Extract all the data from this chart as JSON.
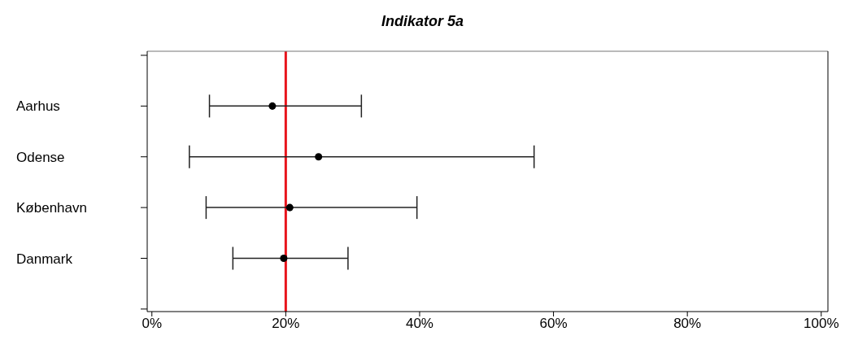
{
  "chart_data": {
    "type": "scatter",
    "title": "Indikator 5a",
    "orientation": "horizontal",
    "categories": [
      null,
      "Aarhus",
      "Odense",
      "København",
      "Danmark",
      null
    ],
    "values": [
      null,
      18.0,
      24.9,
      20.6,
      19.7,
      null
    ],
    "errors": [
      null,
      [
        8.6,
        31.3
      ],
      [
        5.6,
        57.1
      ],
      [
        8.1,
        39.6
      ],
      [
        12.1,
        29.3
      ],
      null
    ],
    "color": "#000000",
    "marker": "circle",
    "xlim": [
      -0.7,
      101
    ],
    "xticks": [
      {
        "value": 0,
        "label": "0%"
      },
      {
        "value": 20,
        "label": "20%"
      },
      {
        "value": 40,
        "label": "40%"
      },
      {
        "value": 60,
        "label": "60%"
      },
      {
        "value": 80,
        "label": "80%"
      },
      {
        "value": 100,
        "label": "100%"
      }
    ],
    "ref_lines": [
      {
        "axis": "x",
        "value": 20,
        "color": "#e8141c"
      }
    ]
  }
}
